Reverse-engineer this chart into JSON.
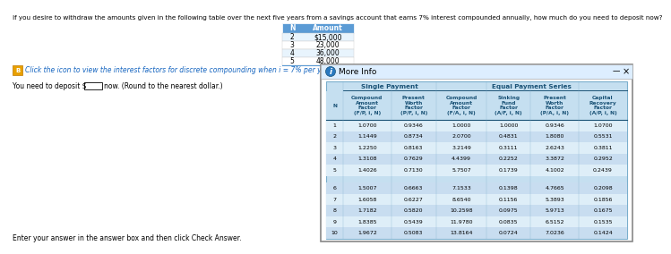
{
  "question_text": "If you desire to withdraw the amounts given in the following table over the next five years from a savings account that earns 7% interest compounded annually, how much do you need to deposit now?",
  "small_table_headers": [
    "N",
    "Amount"
  ],
  "small_table_data": [
    [
      "2",
      "$15,000"
    ],
    [
      "3",
      "23,000"
    ],
    [
      "4",
      "36,000"
    ],
    [
      "5",
      "48,000"
    ]
  ],
  "icon_text": "Click the icon to view the interest factors for discrete compounding when i = 7% per year.",
  "answer_text": "You need to deposit $",
  "answer_suffix": "now. (Round to the nearest dollar.)",
  "enter_text": "Enter your answer in the answer box and then click Check Answer.",
  "popup_title": "More Info",
  "col_headers": [
    "N",
    "Compound\nAmount\nFactor\n(F/P, i, N)",
    "Present\nWorth\nFactor\n(P/F, i, N)",
    "Compound\nAmount\nFactor\n(F/A, i, N)",
    "Sinking\nFund\nFactor\n(A/F, i, N)",
    "Present\nWorth\nFactor\n(P/A, i, N)",
    "Capital\nRecovery\nFactor\n(A/P, i, N)"
  ],
  "group_headers": [
    "Single Payment",
    "Equal Payment Series"
  ],
  "table_data": [
    [
      1,
      1.07,
      0.9346,
      1.0,
      1.0,
      0.9346,
      1.07
    ],
    [
      2,
      1.1449,
      0.8734,
      2.07,
      0.4831,
      1.808,
      0.5531
    ],
    [
      3,
      1.225,
      0.8163,
      3.2149,
      0.3111,
      2.6243,
      0.3811
    ],
    [
      4,
      1.3108,
      0.7629,
      4.4399,
      0.2252,
      3.3872,
      0.2952
    ],
    [
      5,
      1.4026,
      0.713,
      5.7507,
      0.1739,
      4.1002,
      0.2439
    ],
    [
      6,
      1.5007,
      0.6663,
      7.1533,
      0.1398,
      4.7665,
      0.2098
    ],
    [
      7,
      1.6058,
      0.6227,
      8.654,
      0.1156,
      5.3893,
      0.1856
    ],
    [
      8,
      1.7182,
      0.582,
      10.2598,
      0.0975,
      5.9713,
      0.1675
    ],
    [
      9,
      1.8385,
      0.5439,
      11.978,
      0.0835,
      6.5152,
      0.1535
    ],
    [
      10,
      1.9672,
      0.5083,
      13.8164,
      0.0724,
      7.0236,
      0.1424
    ]
  ],
  "small_table_header_bg": "#5b9bd5",
  "header_text_color": "#1a5276",
  "popup_bg": "#cce4f5",
  "popup_title_bg": "#d6eaf8",
  "row_bg_even": "#ddeeff",
  "row_bg_odd": "#c8dff0",
  "table_bg": "#b8d4e8"
}
